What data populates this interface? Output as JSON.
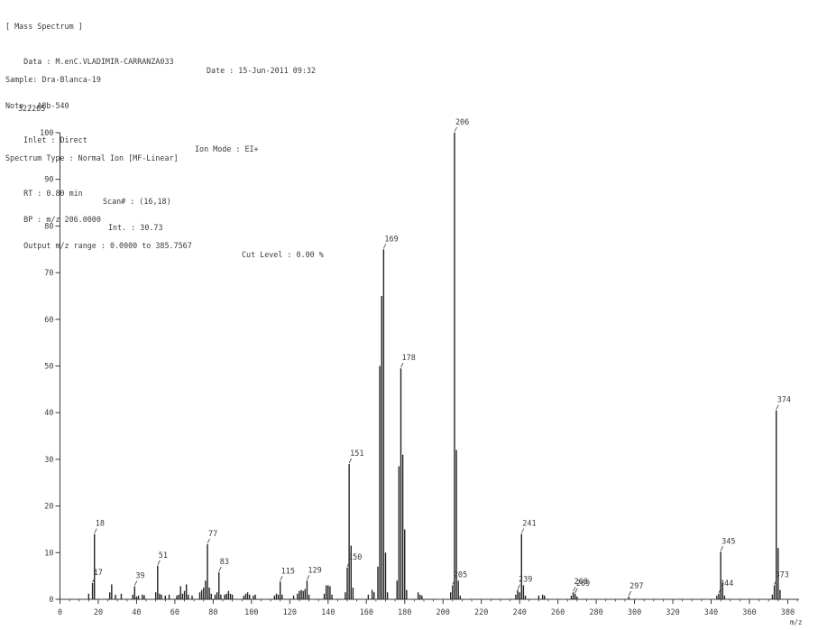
{
  "header": {
    "title": "[ Mass Spectrum ]",
    "data_line": "Data : M.enC.VLADIMIR-CARRANZA033",
    "date_line": "Date : 15-Jun-2011 09:32",
    "sample_line": "Sample: Dra-Blanca-19",
    "note_line": "Note : A8b-540",
    "inlet_line": "Inlet : Direct",
    "ion_mode_line": "Ion Mode : EI+",
    "spectrum_type_line": "Spectrum Type : Normal Ion [MF-Linear]",
    "rt_line": "RT : 0.80 min",
    "scan_line": "Scan# : (16,18)",
    "bp_line": "BP : m/z 206.0000",
    "int_line": "Int. : 30.73",
    "output_line": "Output m/z range : 0.0000 to 385.7567",
    "cut_level_line": "Cut Level : 0.00 %"
  },
  "chart_data": {
    "type": "bar",
    "max_intensity_label": "322265",
    "xlabel": "m/z",
    "ylabel": "",
    "xlim": [
      0,
      385
    ],
    "ylim": [
      0,
      100
    ],
    "x_ticks": [
      0,
      20,
      40,
      60,
      80,
      100,
      120,
      140,
      160,
      180,
      200,
      220,
      240,
      260,
      280,
      300,
      320,
      340,
      360,
      380
    ],
    "y_ticks": [
      0,
      10,
      20,
      30,
      40,
      50,
      60,
      70,
      80,
      90,
      100
    ],
    "peaks": [
      {
        "mz": 15,
        "i": 1.2
      },
      {
        "mz": 17,
        "i": 3.5,
        "label": "17"
      },
      {
        "mz": 18,
        "i": 14.0,
        "label": "18"
      },
      {
        "mz": 26,
        "i": 1.5
      },
      {
        "mz": 27,
        "i": 3.2
      },
      {
        "mz": 29,
        "i": 1.0
      },
      {
        "mz": 32,
        "i": 1.2
      },
      {
        "mz": 38,
        "i": 1.0
      },
      {
        "mz": 39,
        "i": 2.8,
        "label": "39"
      },
      {
        "mz": 40,
        "i": 0.6
      },
      {
        "mz": 41,
        "i": 0.8
      },
      {
        "mz": 43,
        "i": 1.0
      },
      {
        "mz": 44,
        "i": 0.9
      },
      {
        "mz": 50,
        "i": 1.5
      },
      {
        "mz": 51,
        "i": 7.2,
        "label": "51"
      },
      {
        "mz": 52,
        "i": 1.2
      },
      {
        "mz": 53,
        "i": 1.0
      },
      {
        "mz": 55,
        "i": 0.8
      },
      {
        "mz": 57,
        "i": 1.0
      },
      {
        "mz": 61,
        "i": 0.8
      },
      {
        "mz": 62,
        "i": 1.0
      },
      {
        "mz": 63,
        "i": 2.8
      },
      {
        "mz": 64,
        "i": 1.2
      },
      {
        "mz": 65,
        "i": 1.8
      },
      {
        "mz": 66,
        "i": 3.2
      },
      {
        "mz": 67,
        "i": 1.0
      },
      {
        "mz": 69,
        "i": 0.8
      },
      {
        "mz": 73,
        "i": 1.5
      },
      {
        "mz": 74,
        "i": 2.0
      },
      {
        "mz": 75,
        "i": 2.5
      },
      {
        "mz": 76,
        "i": 4.0
      },
      {
        "mz": 77,
        "i": 11.8,
        "label": "77"
      },
      {
        "mz": 78,
        "i": 2.5
      },
      {
        "mz": 79,
        "i": 1.2
      },
      {
        "mz": 81,
        "i": 1.0
      },
      {
        "mz": 82,
        "i": 1.5
      },
      {
        "mz": 83,
        "i": 5.8,
        "label": "83"
      },
      {
        "mz": 84,
        "i": 1.0
      },
      {
        "mz": 86,
        "i": 1.0
      },
      {
        "mz": 87,
        "i": 1.2
      },
      {
        "mz": 88,
        "i": 1.8
      },
      {
        "mz": 89,
        "i": 1.2
      },
      {
        "mz": 90,
        "i": 1.0
      },
      {
        "mz": 96,
        "i": 0.8
      },
      {
        "mz": 97,
        "i": 1.2
      },
      {
        "mz": 98,
        "i": 1.5
      },
      {
        "mz": 99,
        "i": 1.0
      },
      {
        "mz": 101,
        "i": 0.8
      },
      {
        "mz": 102,
        "i": 1.0
      },
      {
        "mz": 112,
        "i": 0.8
      },
      {
        "mz": 113,
        "i": 1.2
      },
      {
        "mz": 114,
        "i": 1.0
      },
      {
        "mz": 115,
        "i": 3.8,
        "label": "115"
      },
      {
        "mz": 116,
        "i": 1.0
      },
      {
        "mz": 122,
        "i": 0.8
      },
      {
        "mz": 124,
        "i": 1.2
      },
      {
        "mz": 125,
        "i": 1.8
      },
      {
        "mz": 126,
        "i": 2.0
      },
      {
        "mz": 127,
        "i": 1.8
      },
      {
        "mz": 128,
        "i": 2.2
      },
      {
        "mz": 129,
        "i": 4.0,
        "label": "129"
      },
      {
        "mz": 130,
        "i": 1.0
      },
      {
        "mz": 138,
        "i": 1.2
      },
      {
        "mz": 139,
        "i": 3.0
      },
      {
        "mz": 140,
        "i": 3.0
      },
      {
        "mz": 141,
        "i": 2.8
      },
      {
        "mz": 142,
        "i": 1.0
      },
      {
        "mz": 149,
        "i": 1.5
      },
      {
        "mz": 150,
        "i": 6.8,
        "label": "150"
      },
      {
        "mz": 151,
        "i": 29.0,
        "label": "151"
      },
      {
        "mz": 152,
        "i": 11.5
      },
      {
        "mz": 153,
        "i": 2.5
      },
      {
        "mz": 161,
        "i": 1.0
      },
      {
        "mz": 163,
        "i": 2.0
      },
      {
        "mz": 164,
        "i": 1.5
      },
      {
        "mz": 166,
        "i": 7.0
      },
      {
        "mz": 167,
        "i": 50.0
      },
      {
        "mz": 168,
        "i": 65.0
      },
      {
        "mz": 169,
        "i": 75.0,
        "label": "169"
      },
      {
        "mz": 170,
        "i": 10.0
      },
      {
        "mz": 171,
        "i": 1.5
      },
      {
        "mz": 176,
        "i": 4.0
      },
      {
        "mz": 177,
        "i": 28.5
      },
      {
        "mz": 178,
        "i": 49.5,
        "label": "178"
      },
      {
        "mz": 179,
        "i": 31.0
      },
      {
        "mz": 180,
        "i": 15.0
      },
      {
        "mz": 181,
        "i": 2.0
      },
      {
        "mz": 187,
        "i": 1.5
      },
      {
        "mz": 188,
        "i": 1.0
      },
      {
        "mz": 189,
        "i": 0.8
      },
      {
        "mz": 204,
        "i": 1.5
      },
      {
        "mz": 205,
        "i": 3.0,
        "label": "205"
      },
      {
        "mz": 206,
        "i": 100.0,
        "label": "206"
      },
      {
        "mz": 207,
        "i": 32.0
      },
      {
        "mz": 208,
        "i": 4.0
      },
      {
        "mz": 209,
        "i": 0.8
      },
      {
        "mz": 238,
        "i": 1.0
      },
      {
        "mz": 239,
        "i": 2.0,
        "label": "239"
      },
      {
        "mz": 240,
        "i": 1.5
      },
      {
        "mz": 241,
        "i": 14.0,
        "label": "241"
      },
      {
        "mz": 242,
        "i": 3.0
      },
      {
        "mz": 243,
        "i": 0.8
      },
      {
        "mz": 250,
        "i": 0.8
      },
      {
        "mz": 252,
        "i": 1.0
      },
      {
        "mz": 253,
        "i": 0.8
      },
      {
        "mz": 267,
        "i": 0.8
      },
      {
        "mz": 268,
        "i": 1.5,
        "label": "268"
      },
      {
        "mz": 269,
        "i": 1.2,
        "label": "269"
      },
      {
        "mz": 270,
        "i": 0.6
      },
      {
        "mz": 297,
        "i": 0.6,
        "label": "297"
      },
      {
        "mz": 343,
        "i": 0.8
      },
      {
        "mz": 344,
        "i": 1.2,
        "label": "344"
      },
      {
        "mz": 345,
        "i": 10.2,
        "label": "345"
      },
      {
        "mz": 346,
        "i": 3.5
      },
      {
        "mz": 347,
        "i": 0.8
      },
      {
        "mz": 372,
        "i": 1.0
      },
      {
        "mz": 373,
        "i": 3.0,
        "label": "373"
      },
      {
        "mz": 374,
        "i": 40.5,
        "label": "374"
      },
      {
        "mz": 375,
        "i": 11.0
      },
      {
        "mz": 376,
        "i": 2.0
      }
    ]
  }
}
